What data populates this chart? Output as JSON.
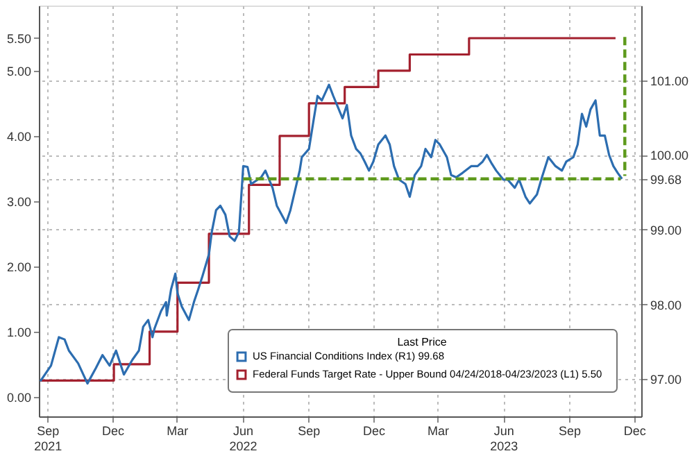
{
  "chart_data": {
    "type": "line",
    "legend_title": "Last Price",
    "legend": "bottom right",
    "grid": true,
    "xlim": [
      "2021-09-03",
      "2023-12-25"
    ],
    "xticks": [
      {
        "value": "2021-09-15",
        "label": "Sep\n2021"
      },
      {
        "value": "2021-12-15",
        "label": "Dec"
      },
      {
        "value": "2022-03-15",
        "label": "Mar"
      },
      {
        "value": "2022-06-15",
        "label": "Jun\n2022"
      },
      {
        "value": "2022-09-15",
        "label": "Sep"
      },
      {
        "value": "2022-12-15",
        "label": "Dec"
      },
      {
        "value": "2023-03-15",
        "label": "Mar"
      },
      {
        "value": "2023-06-15",
        "label": "Jun\n2023"
      },
      {
        "value": "2023-09-15",
        "label": "Sep"
      },
      {
        "value": "2023-12-15",
        "label": "Dec"
      }
    ],
    "ylim": [
      -0.3,
      6.0
    ],
    "yticks": [
      {
        "value": 0,
        "label": "0.00"
      },
      {
        "value": 1,
        "label": "1.00"
      },
      {
        "value": 2,
        "label": "2.00"
      },
      {
        "value": 3,
        "label": "3.00"
      },
      {
        "value": 4,
        "label": "4.00"
      },
      {
        "value": 5,
        "label": "5.00"
      },
      {
        "value": 5.5,
        "label": "5.50"
      }
    ],
    "y2lim": [
      96.5,
      102.0
    ],
    "y2ticks": [
      {
        "value": 97,
        "label": "97.00"
      },
      {
        "value": 98,
        "label": "98.00"
      },
      {
        "value": 99,
        "label": "99.00"
      },
      {
        "value": 99.68,
        "label": "99.68"
      },
      {
        "value": 100,
        "label": "100.00"
      },
      {
        "value": 101,
        "label": "101.00"
      }
    ],
    "series": [
      {
        "name": "US Financial Conditions Index  (R1)  99.68",
        "axis": "y2",
        "color": "#2c6db0",
        "line_style": "solid",
        "x": [
          "2021-09-05",
          "2021-09-20",
          "2021-10-01",
          "2021-10-09",
          "2021-10-15",
          "2021-10-28",
          "2021-11-10",
          "2021-11-22",
          "2021-12-01",
          "2021-12-11",
          "2021-12-20",
          "2021-12-31",
          "2022-01-12",
          "2022-01-21",
          "2022-01-27",
          "2022-02-03",
          "2022-02-09",
          "2022-02-12",
          "2022-02-21",
          "2022-02-28",
          "2022-03-01",
          "2022-03-07",
          "2022-03-13",
          "2022-03-16",
          "2022-03-22",
          "2022-04-01",
          "2022-04-08",
          "2022-04-14",
          "2022-04-20",
          "2022-04-29",
          "2022-05-03",
          "2022-05-09",
          "2022-05-15",
          "2022-05-22",
          "2022-05-28",
          "2022-06-04",
          "2022-06-10",
          "2022-06-16",
          "2022-06-22",
          "2022-06-27",
          "2022-07-11",
          "2022-07-17",
          "2022-07-27",
          "2022-08-02",
          "2022-08-15",
          "2022-08-21",
          "2022-09-03",
          "2022-09-06",
          "2022-09-16",
          "2022-09-22",
          "2022-09-28",
          "2022-10-04",
          "2022-10-14",
          "2022-10-20",
          "2022-11-02",
          "2022-11-08",
          "2022-11-14",
          "2022-11-21",
          "2022-11-27",
          "2022-12-03",
          "2022-12-09",
          "2022-12-15",
          "2022-12-22",
          "2023-01-01",
          "2023-01-07",
          "2023-01-13",
          "2023-01-20",
          "2023-01-29",
          "2023-02-04",
          "2023-02-11",
          "2023-02-20",
          "2023-02-26",
          "2023-03-06",
          "2023-03-12",
          "2023-03-18",
          "2023-03-28",
          "2023-04-03",
          "2023-04-10",
          "2023-04-19",
          "2023-05-01",
          "2023-05-10",
          "2023-05-17",
          "2023-05-23",
          "2023-05-30",
          "2023-06-05",
          "2023-06-15",
          "2023-06-21",
          "2023-07-01",
          "2023-07-07",
          "2023-07-16",
          "2023-07-22",
          "2023-08-01",
          "2023-08-08",
          "2023-08-17",
          "2023-08-27",
          "2023-09-05",
          "2023-09-11",
          "2023-09-21",
          "2023-09-27",
          "2023-10-03",
          "2023-10-09",
          "2023-10-15",
          "2023-10-22",
          "2023-10-28",
          "2023-11-04",
          "2023-11-10",
          "2023-11-16",
          "2023-11-22",
          "2023-11-28"
        ],
        "values": [
          96.97,
          97.18,
          97.56,
          97.53,
          97.38,
          97.21,
          96.94,
          97.15,
          97.32,
          97.18,
          97.38,
          97.06,
          97.26,
          97.38,
          97.7,
          97.79,
          97.56,
          97.68,
          97.91,
          98.03,
          97.85,
          98.2,
          98.41,
          98.15,
          97.97,
          97.79,
          98.03,
          98.2,
          98.38,
          98.67,
          98.97,
          99.26,
          99.32,
          99.2,
          98.91,
          98.85,
          98.97,
          99.85,
          99.84,
          99.61,
          99.7,
          99.79,
          99.56,
          99.32,
          99.09,
          99.26,
          99.79,
          99.97,
          100.08,
          100.44,
          100.79,
          100.73,
          100.94,
          100.79,
          100.49,
          100.67,
          100.26,
          100.08,
          100.02,
          99.91,
          99.79,
          99.91,
          100.14,
          100.26,
          100.14,
          99.85,
          99.67,
          99.61,
          99.44,
          99.73,
          99.85,
          100.08,
          99.97,
          100.2,
          100.14,
          99.97,
          99.73,
          99.7,
          99.76,
          99.85,
          99.85,
          99.91,
          100.0,
          99.88,
          99.79,
          99.67,
          99.67,
          99.56,
          99.67,
          99.44,
          99.35,
          99.47,
          99.7,
          99.97,
          99.85,
          99.79,
          99.91,
          99.97,
          100.14,
          100.55,
          100.38,
          100.61,
          100.73,
          100.26,
          100.26,
          100.0,
          99.85,
          99.76,
          99.68
        ]
      },
      {
        "name": "Federal Funds Target Rate - Upper Bound 04/24/2018-04/23/2023  (L1)  5.50",
        "type": "step",
        "axis": "y",
        "color": "#a3202e",
        "line_style": "solid",
        "x": [
          "2021-09-05",
          "2021-12-17",
          "2022-02-05",
          "2022-03-16",
          "2022-04-29",
          "2022-06-24",
          "2022-08-06",
          "2022-09-16",
          "2022-11-05",
          "2022-12-22",
          "2023-02-04",
          "2023-04-28",
          "2023-11-19"
        ],
        "values": [
          0.25,
          0.5,
          1.0,
          1.75,
          2.5,
          3.25,
          4.0,
          4.5,
          4.75,
          5.0,
          5.25,
          5.5,
          5.5
        ]
      },
      {
        "type": "line",
        "axis": "y2",
        "color": "#5e9a1c",
        "line_style": "dashed",
        "x": [
          "2022-06-16",
          "2023-11-26"
        ],
        "values": [
          99.68,
          99.68
        ]
      },
      {
        "type": "line",
        "axis": "y2",
        "color": "#5e9a1c",
        "line_style": "dashed",
        "x": [
          "2023-12-02",
          "2023-12-02"
        ],
        "values": [
          101.58,
          99.72
        ]
      }
    ]
  }
}
